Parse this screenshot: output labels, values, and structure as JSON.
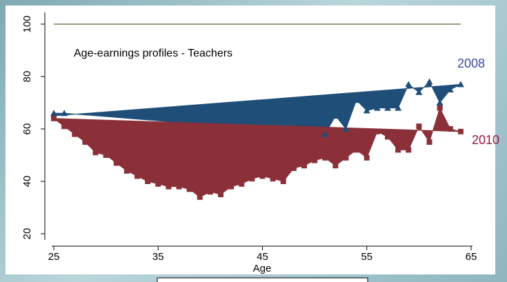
{
  "chart_data": {
    "type": "area",
    "annotation": "Age-earnings profiles - Teachers",
    "xlabel": "Age",
    "ylabel": "",
    "xlim": [
      25,
      65
    ],
    "ylim": [
      20,
      100
    ],
    "xticks": [
      25,
      35,
      45,
      55,
      65
    ],
    "yticks": [
      20,
      40,
      60,
      80,
      100
    ],
    "reference_line": {
      "y": 100,
      "x_range": [
        25,
        64
      ],
      "color": "#556b2f"
    },
    "series": [
      {
        "name": "2008",
        "color": "#1f4e79",
        "marker": "triangle",
        "x": [
          25,
          26,
          51,
          52,
          53,
          54,
          55,
          56,
          57,
          58,
          59,
          60,
          61,
          62,
          63,
          64
        ],
        "y": [
          66,
          66,
          58,
          65,
          60,
          71,
          67,
          68,
          68,
          68,
          77,
          74,
          78,
          70,
          75,
          77
        ],
        "fit": {
          "x": [
            25,
            64
          ],
          "y": [
            65,
            77
          ]
        }
      },
      {
        "name": "2010",
        "color": "#8b3039",
        "marker": "square",
        "x": [
          25,
          26,
          27,
          28,
          29,
          30,
          31,
          32,
          33,
          34,
          35,
          36,
          37,
          38,
          39,
          40,
          41,
          42,
          43,
          44,
          45,
          46,
          47,
          48,
          49,
          50,
          51,
          52,
          53,
          54,
          55,
          56,
          57,
          58,
          59,
          60,
          61,
          62,
          63,
          64
        ],
        "y": [
          64,
          61,
          58,
          55,
          51,
          50,
          47,
          44,
          42,
          40,
          39,
          38,
          38,
          37,
          34,
          36,
          35,
          38,
          39,
          41,
          42,
          41,
          40,
          45,
          46,
          48,
          49,
          46,
          49,
          52,
          49,
          59,
          57,
          52,
          52,
          61,
          55,
          68,
          60,
          59
        ],
        "fit": {
          "x": [
            25,
            64
          ],
          "y": [
            64,
            59
          ]
        }
      }
    ],
    "grid": false,
    "legend": "inline-right"
  }
}
